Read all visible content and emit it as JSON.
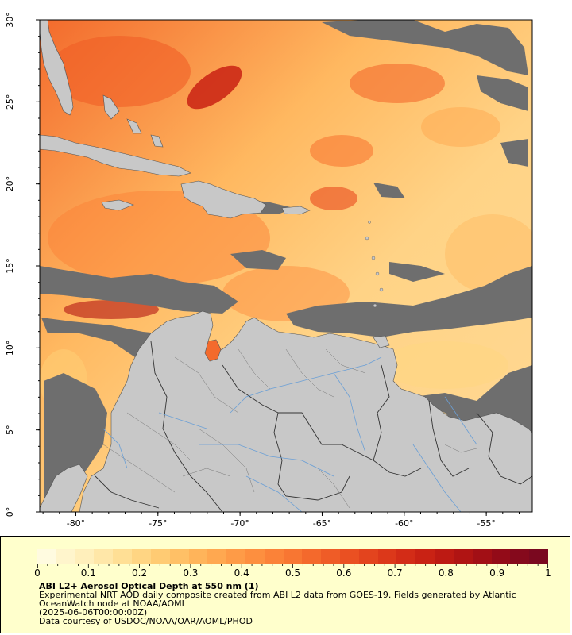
{
  "map": {
    "x_ticks": [
      "-80°",
      "-75°",
      "-70°",
      "-65°",
      "-60°",
      "-55°"
    ],
    "x_tick_values": [
      -80,
      -75,
      -70,
      -65,
      -60,
      -55
    ],
    "y_ticks": [
      "30°",
      "25°",
      "20°",
      "15°",
      "10°",
      "5°",
      "0°"
    ],
    "y_tick_values": [
      30,
      25,
      20,
      15,
      10,
      5,
      0
    ],
    "lon_range": [
      -82.2,
      -52.2
    ],
    "lat_range": [
      0,
      30
    ],
    "colors": {
      "land": "#c8c8c8",
      "no_data": "#6e6e6e",
      "border": "#333333",
      "river": "#6a9fd6"
    }
  },
  "legend": {
    "scale_labels": [
      "0",
      "0.1",
      "0.2",
      "0.3",
      "0.4",
      "0.5",
      "0.6",
      "0.7",
      "0.8",
      "0.9",
      "1"
    ],
    "colors": [
      "#fffbe0",
      "#fff5cc",
      "#ffefbb",
      "#ffe7a8",
      "#ffdf95",
      "#ffd583",
      "#ffcb73",
      "#ffc066",
      "#ffb45a",
      "#ffa850",
      "#fe9b47",
      "#fd8f3f",
      "#fb8238",
      "#f87632",
      "#f4692c",
      "#ef5c27",
      "#ea5022",
      "#e3441e",
      "#dc381a",
      "#d32c17",
      "#c92214",
      "#bd1a13",
      "#b01413",
      "#a20f15",
      "#930b18",
      "#85091c",
      "#7a081f"
    ],
    "title": "ABI L2+ Aerosol Optical Depth at 550 nm (1)",
    "line1": "Experimental NRT AOD daily composite created from ABI L2 data from GOES-19. Fields generated by Atlantic",
    "line2": "OceanWatch node at NOAA/AOML",
    "line3": "(2025-06-06T00:00:00Z)",
    "line4": "Data courtesy of USDOC/NOAA/OAR/AOML/PHOD"
  }
}
